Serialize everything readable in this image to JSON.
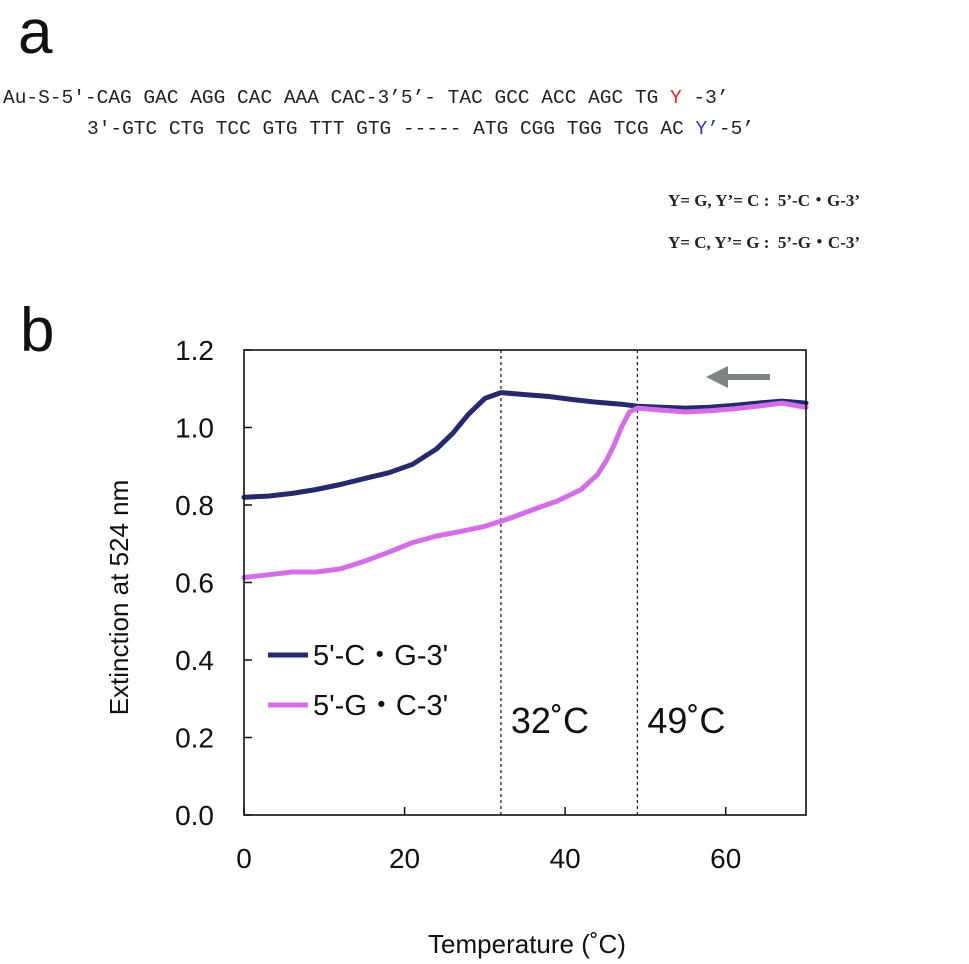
{
  "panel_a": {
    "label": "a",
    "top_strand": {
      "left_part": "Au-S-5'-CAG GAC AGG CAC AAA CAC-3’",
      "right_prefix": "5’- TAC GCC ACC AGC TG ",
      "variable_base": "Y",
      "right_suffix": " -3’"
    },
    "bottom_strand": {
      "prefix": "3'-GTC CTG TCC GTG TTT GTG ----- ATG CGG TGG TCG AC ",
      "variable_base": "Y’",
      "suffix": "-5’"
    },
    "definitions": [
      "Y= G, Y’= C :  5’-C・G-3’",
      "Y= C, Y’= G :  5’-G・C-3’"
    ],
    "colors": {
      "y_top": "#e8242c",
      "y_bottom": "#2c3aa0"
    }
  },
  "panel_b": {
    "label": "b"
  },
  "chart_data": {
    "type": "line",
    "xlabel": "Temperature (˚C)",
    "ylabel": "Extinction at 524 nm",
    "xlim": [
      0,
      70
    ],
    "ylim": [
      0,
      1.2
    ],
    "xticks": [
      0,
      20,
      40,
      60
    ],
    "xtick_labels": [
      "0",
      "20",
      "40",
      "60"
    ],
    "yticks": [
      0,
      0.2,
      0.4,
      0.6,
      0.8,
      1.0,
      1.2
    ],
    "ytick_labels": [
      "0.0",
      "0.2",
      "0.4",
      "0.6",
      "0.8",
      "1.0",
      "1.2"
    ],
    "grid": false,
    "legend_position": "lower-left",
    "series": [
      {
        "name": "5'-C・G-3'",
        "color": "#252a6b",
        "x": [
          0,
          3,
          6,
          9,
          12,
          15,
          18,
          21,
          24,
          26,
          28,
          30,
          32,
          35,
          38,
          41,
          44,
          47,
          49,
          52,
          55,
          58,
          61,
          64,
          67,
          70
        ],
        "y": [
          0.82,
          0.823,
          0.83,
          0.84,
          0.853,
          0.868,
          0.883,
          0.905,
          0.945,
          0.985,
          1.035,
          1.075,
          1.09,
          1.085,
          1.08,
          1.072,
          1.065,
          1.06,
          1.055,
          1.052,
          1.05,
          1.052,
          1.057,
          1.063,
          1.068,
          1.063
        ]
      },
      {
        "name": "5'-G・C-3'",
        "color": "#d46ee8",
        "x": [
          0,
          3,
          6,
          9,
          12,
          15,
          18,
          21,
          24,
          27,
          30,
          33,
          36,
          39,
          42,
          44,
          45,
          46,
          47,
          48,
          49,
          52,
          55,
          58,
          61,
          64,
          67,
          70
        ],
        "y": [
          0.613,
          0.62,
          0.627,
          0.627,
          0.635,
          0.655,
          0.678,
          0.703,
          0.72,
          0.732,
          0.745,
          0.765,
          0.788,
          0.81,
          0.84,
          0.878,
          0.91,
          0.95,
          1.0,
          1.04,
          1.05,
          1.045,
          1.04,
          1.043,
          1.048,
          1.055,
          1.063,
          1.052
        ]
      }
    ],
    "annotations": [
      {
        "type": "vline",
        "x": 32,
        "label": "32˚C"
      },
      {
        "type": "vline",
        "x": 49,
        "label": "49˚C"
      }
    ],
    "arrow": {
      "direction": "left",
      "color": "#7e8481"
    }
  }
}
